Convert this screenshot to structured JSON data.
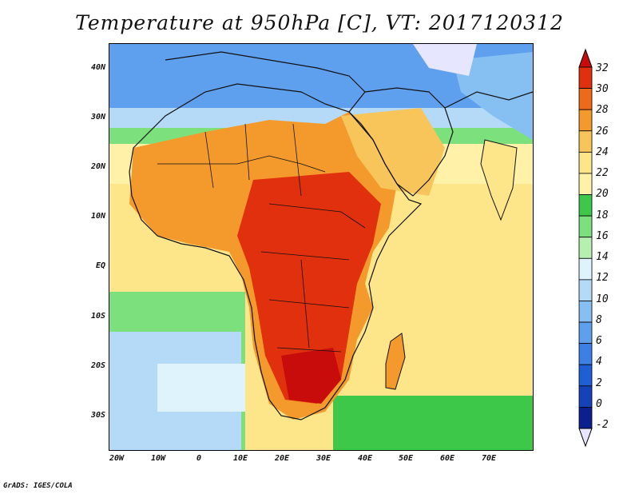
{
  "title": "Temperature at 950hPa [C], VT: 2017120312",
  "credit": "GrADS: IGES/COLA",
  "map": {
    "projection": "latlon",
    "lon_range": [
      -23,
      80
    ],
    "lat_range": [
      -37,
      45
    ],
    "lon_labels": [
      "20W",
      "10W",
      "0",
      "10E",
      "20E",
      "30E",
      "40E",
      "50E",
      "60E",
      "70E"
    ],
    "lon_values": [
      -20,
      -10,
      0,
      10,
      20,
      30,
      40,
      50,
      60,
      70
    ],
    "lat_labels": [
      "40N",
      "30N",
      "20N",
      "10N",
      "EQ",
      "10S",
      "20S",
      "30S"
    ],
    "lat_values": [
      40,
      30,
      20,
      10,
      0,
      -10,
      -20,
      -30
    ]
  },
  "colorbar": {
    "labels": [
      "32",
      "30",
      "28",
      "26",
      "24",
      "22",
      "20",
      "18",
      "16",
      "14",
      "12",
      "10",
      "8",
      "6",
      "4",
      "2",
      "0",
      "-2"
    ],
    "levels": [
      -2,
      0,
      2,
      4,
      6,
      8,
      10,
      12,
      14,
      16,
      18,
      20,
      22,
      24,
      26,
      28,
      30,
      32
    ],
    "colors": [
      "#e6e6ff",
      "#0c1f8e",
      "#1442b8",
      "#1e5fd6",
      "#3c80e6",
      "#5fa0ee",
      "#86bff2",
      "#b4daf8",
      "#dff3fc",
      "#b6f0b0",
      "#7ce07c",
      "#3ec84a",
      "#fff2a8",
      "#fde58a",
      "#f8c55a",
      "#f49a2c",
      "#ee6a1a",
      "#e0300e",
      "#c80c0c"
    ]
  }
}
